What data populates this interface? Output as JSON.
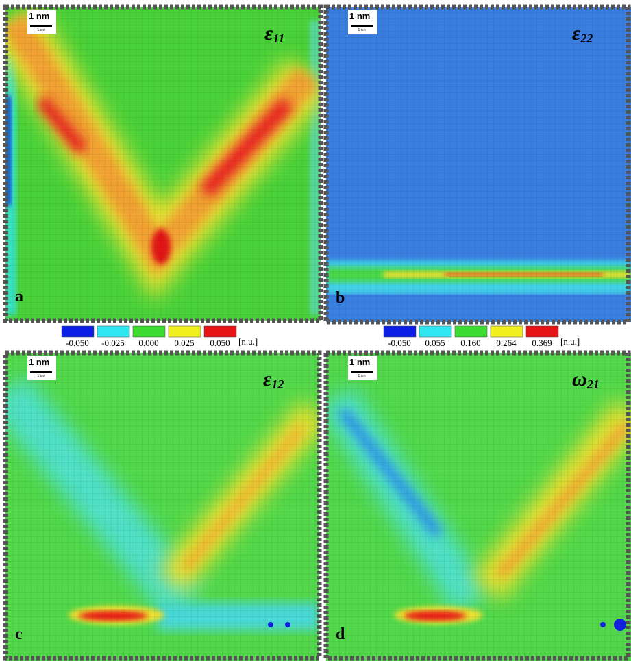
{
  "panels": [
    {
      "label": "a",
      "symbol": "ε",
      "subscript": "11",
      "scale_label": "1 nm",
      "scale_bar_label": "1 nm"
    },
    {
      "label": "b",
      "symbol": "ε",
      "subscript": "22",
      "scale_label": "1 nm",
      "scale_bar_label": "1 nm"
    },
    {
      "label": "c",
      "symbol": "ε",
      "subscript": "12",
      "scale_label": "1 nm",
      "scale_bar_label": "1 nm"
    },
    {
      "label": "d",
      "symbol": "ω",
      "subscript": "21",
      "scale_label": "1 nm",
      "scale_bar_label": "1 nm"
    }
  ],
  "colorbars": [
    {
      "ticks": [
        "-0.050",
        "-0.025",
        "0.000",
        "0.025",
        "0.050"
      ],
      "unit": "[n.u.]",
      "colors": [
        "#0a1ee6",
        "#2ee6f0",
        "#3cdc32",
        "#f0f020",
        "#e61414"
      ]
    },
    {
      "ticks": [
        "-0.050",
        "0.055",
        "0.160",
        "0.264",
        "0.369"
      ],
      "unit": "[n.u.]",
      "colors": [
        "#0a1ee6",
        "#2ee6f0",
        "#3cdc32",
        "#f0f020",
        "#e61414"
      ]
    }
  ]
}
